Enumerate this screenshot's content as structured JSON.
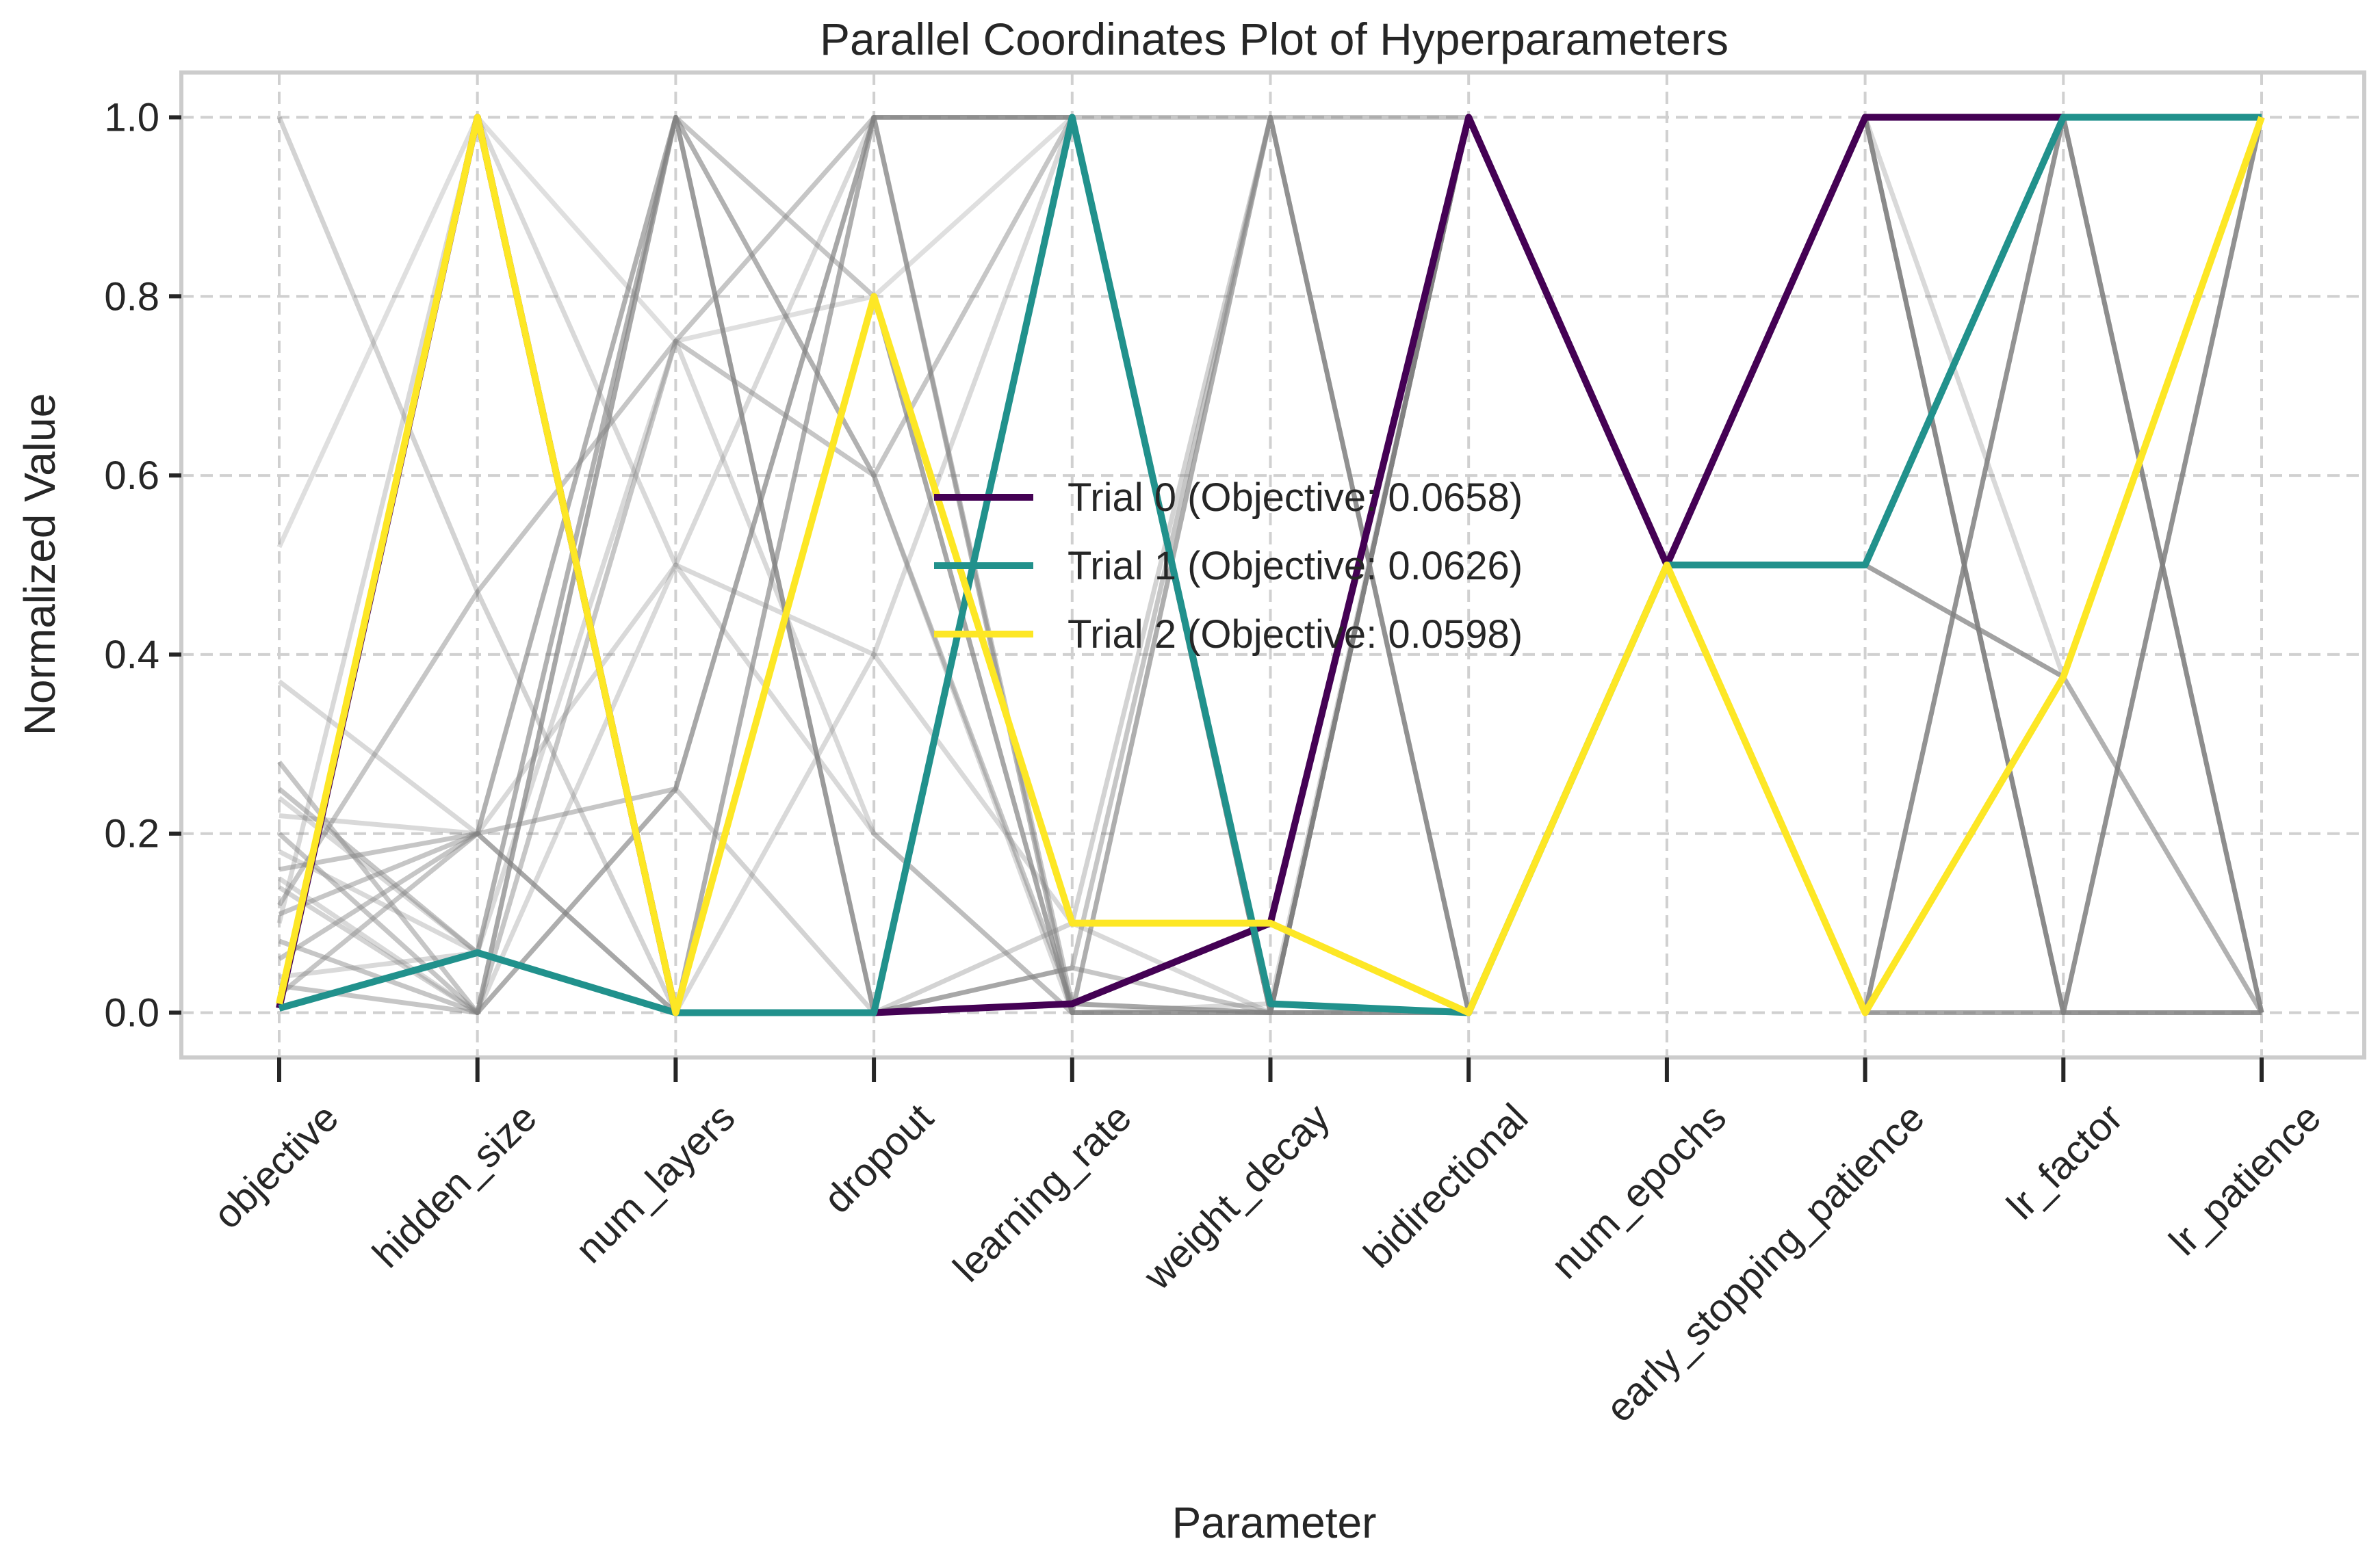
{
  "chart_data": {
    "type": "line",
    "title": "Parallel Coordinates Plot of Hyperparameters",
    "xlabel": "Parameter",
    "ylabel": "Normalized Value",
    "ylim": [
      -0.05,
      1.05
    ],
    "yticks": [
      0.0,
      0.2,
      0.4,
      0.6,
      0.8,
      1.0
    ],
    "ytick_labels": [
      "0.0",
      "0.2",
      "0.4",
      "0.6",
      "0.8",
      "1.0"
    ],
    "categories": [
      "objective",
      "hidden_size",
      "num_layers",
      "dropout",
      "learning_rate",
      "weight_decay",
      "bidirectional",
      "num_epochs",
      "early_stopping_patience",
      "lr_factor",
      "lr_patience"
    ],
    "grid": true,
    "legend_position": "center",
    "series": [
      {
        "name": "Trial 0 (Objective: 0.0658)",
        "color": "#440154",
        "values": [
          0.005,
          1.0,
          0.0,
          0.0,
          0.01,
          0.1,
          1.0,
          0.5,
          1.0,
          1.0,
          1.0
        ]
      },
      {
        "name": "Trial 1 (Objective: 0.0626)",
        "color": "#21918c",
        "values": [
          0.005,
          0.067,
          0.0,
          0.0,
          1.0,
          0.01,
          0.0,
          0.5,
          0.5,
          1.0,
          1.0
        ]
      },
      {
        "name": "Trial 2 (Objective: 0.0598)",
        "color": "#fde725",
        "values": [
          0.01,
          1.0,
          0.0,
          0.8,
          0.1,
          0.1,
          0.0,
          0.5,
          0.0,
          0.375,
          1.0
        ]
      }
    ],
    "background_series": [
      {
        "values": [
          1.0,
          0.47,
          0.0,
          1.0,
          0.0,
          1.0,
          0.0,
          0.5,
          1.0,
          0.0,
          1.0
        ],
        "opacity": 0.35
      },
      {
        "values": [
          0.52,
          1.0,
          0.75,
          0.8,
          1.0,
          0.0,
          1.0,
          0.5,
          0.0,
          1.0,
          0.0
        ],
        "opacity": 0.25
      },
      {
        "values": [
          0.37,
          0.2,
          1.0,
          0.6,
          0.0,
          0.0,
          0.0,
          0.5,
          0.5,
          0.375,
          0.0
        ],
        "opacity": 0.3
      },
      {
        "values": [
          0.28,
          0.0,
          0.25,
          1.0,
          1.0,
          0.0,
          1.0,
          0.5,
          1.0,
          0.0,
          1.0
        ],
        "opacity": 0.45
      },
      {
        "values": [
          0.25,
          0.067,
          1.0,
          0.0,
          0.05,
          1.0,
          0.0,
          0.5,
          0.0,
          1.0,
          0.0
        ],
        "opacity": 0.45
      },
      {
        "values": [
          0.22,
          0.2,
          0.5,
          0.2,
          0.0,
          0.0,
          1.0,
          0.5,
          1.0,
          0.375,
          1.0
        ],
        "opacity": 0.3
      },
      {
        "values": [
          0.2,
          0.0,
          0.75,
          1.0,
          0.01,
          0.0,
          0.0,
          0.5,
          0.0,
          0.0,
          0.0
        ],
        "opacity": 0.45
      },
      {
        "values": [
          0.18,
          0.067,
          0.0,
          0.4,
          1.0,
          0.01,
          1.0,
          0.5,
          1.0,
          1.0,
          0.0
        ],
        "opacity": 0.3
      },
      {
        "values": [
          0.16,
          0.2,
          1.0,
          0.8,
          0.0,
          0.0,
          1.0,
          0.5,
          0.5,
          0.375,
          1.0
        ],
        "opacity": 0.45
      },
      {
        "values": [
          0.14,
          0.0,
          0.25,
          0.0,
          0.1,
          1.0,
          0.0,
          0.5,
          0.0,
          1.0,
          0.0
        ],
        "opacity": 0.35
      },
      {
        "values": [
          0.12,
          0.47,
          0.75,
          0.6,
          1.0,
          0.0,
          1.0,
          0.5,
          1.0,
          0.0,
          0.0
        ],
        "opacity": 0.45
      },
      {
        "values": [
          0.1,
          1.0,
          0.5,
          1.0,
          0.0,
          0.01,
          0.0,
          0.5,
          0.5,
          0.375,
          1.0
        ],
        "opacity": 0.3
      },
      {
        "values": [
          0.08,
          0.0,
          1.0,
          0.0,
          0.05,
          0.0,
          1.0,
          0.5,
          0.0,
          0.0,
          1.0
        ],
        "opacity": 0.45
      },
      {
        "values": [
          0.06,
          0.2,
          0.0,
          1.0,
          1.0,
          1.0,
          1.0,
          0.5,
          1.0,
          1.0,
          0.0
        ],
        "opacity": 0.45
      },
      {
        "values": [
          0.04,
          0.067,
          0.75,
          0.2,
          0.0,
          0.0,
          0.0,
          0.5,
          0.0,
          0.375,
          1.0
        ],
        "opacity": 0.3
      },
      {
        "values": [
          0.03,
          0.0,
          1.0,
          0.6,
          0.01,
          0.0,
          1.0,
          0.5,
          1.0,
          0.0,
          0.0
        ],
        "opacity": 0.45
      },
      {
        "values": [
          0.02,
          0.2,
          0.25,
          1.0,
          1.0,
          0.0,
          0.0,
          0.5,
          0.0,
          1.0,
          1.0
        ],
        "opacity": 0.45
      },
      {
        "values": [
          0.15,
          0.0,
          0.5,
          0.4,
          0.1,
          0.0,
          1.0,
          0.5,
          1.0,
          0.0,
          1.0
        ],
        "opacity": 0.3
      },
      {
        "values": [
          0.11,
          0.2,
          0.0,
          0.8,
          0.0,
          1.0,
          0.0,
          0.5,
          0.0,
          0.375,
          0.0
        ],
        "opacity": 0.45
      },
      {
        "values": [
          0.24,
          0.067,
          1.0,
          0.0,
          1.0,
          0.0,
          1.0,
          0.5,
          1.0,
          1.0,
          1.0
        ],
        "opacity": 0.3
      }
    ]
  }
}
